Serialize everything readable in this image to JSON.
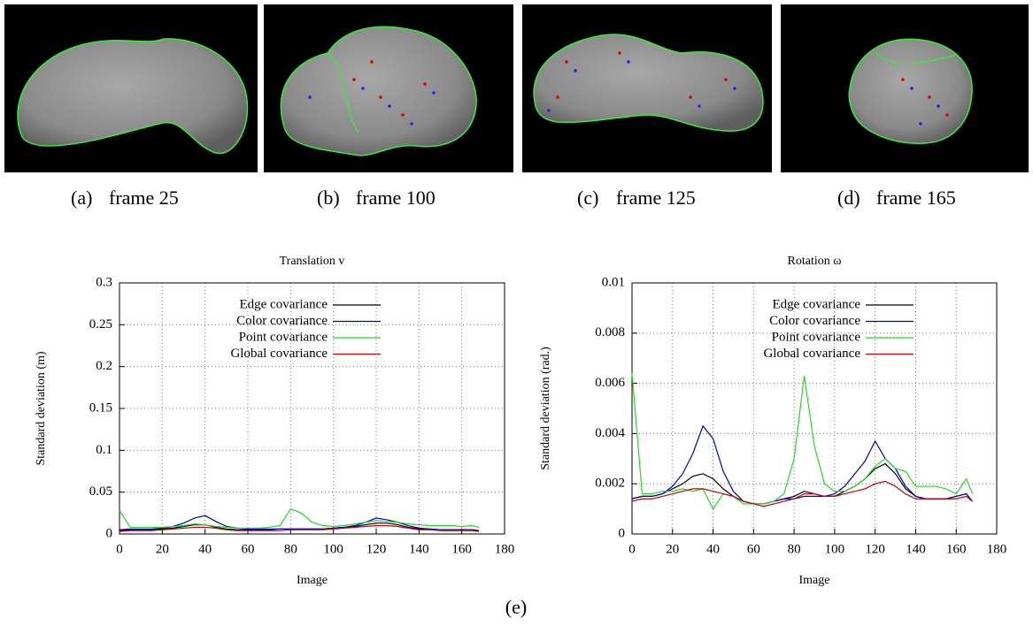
{
  "panels": [
    {
      "label": "(a)",
      "caption": "frame 25"
    },
    {
      "label": "(b)",
      "caption": "frame 100"
    },
    {
      "label": "(c)",
      "caption": "frame 125"
    },
    {
      "label": "(d)",
      "caption": "frame 165"
    }
  ],
  "figure_label": "(e)",
  "chart_data": [
    {
      "type": "line",
      "title": "Translation v",
      "xlabel": "Image",
      "ylabel": "Standard deviation (m)",
      "xlim": [
        0,
        180
      ],
      "xticks": [
        0,
        20,
        40,
        60,
        80,
        100,
        120,
        140,
        160,
        180
      ],
      "ylim": [
        0,
        0.3
      ],
      "yticks": [
        0,
        0.05,
        0.1,
        0.15,
        0.2,
        0.25,
        0.3
      ],
      "grid": true,
      "legend": "top",
      "x": [
        0,
        5,
        10,
        15,
        20,
        25,
        30,
        35,
        40,
        45,
        50,
        55,
        60,
        65,
        70,
        75,
        80,
        85,
        90,
        95,
        100,
        105,
        110,
        115,
        120,
        125,
        130,
        135,
        140,
        145,
        150,
        155,
        160,
        165,
        168
      ],
      "series": [
        {
          "name": "Edge covariance",
          "color": "#000000",
          "values": [
            0.004,
            0.005,
            0.005,
            0.005,
            0.006,
            0.007,
            0.009,
            0.011,
            0.011,
            0.008,
            0.006,
            0.005,
            0.005,
            0.005,
            0.005,
            0.006,
            0.006,
            0.006,
            0.006,
            0.006,
            0.007,
            0.008,
            0.009,
            0.011,
            0.013,
            0.013,
            0.011,
            0.008,
            0.006,
            0.006,
            0.005,
            0.005,
            0.005,
            0.005,
            0.004
          ]
        },
        {
          "name": "Color covariance",
          "color": "#0000cc",
          "values": [
            0.005,
            0.006,
            0.006,
            0.006,
            0.007,
            0.009,
            0.013,
            0.019,
            0.022,
            0.015,
            0.009,
            0.007,
            0.006,
            0.006,
            0.006,
            0.006,
            0.006,
            0.006,
            0.006,
            0.006,
            0.007,
            0.008,
            0.01,
            0.014,
            0.019,
            0.017,
            0.014,
            0.01,
            0.007,
            0.006,
            0.005,
            0.005,
            0.005,
            0.005,
            0.004
          ]
        },
        {
          "name": "Point covariance",
          "color": "#22dd22",
          "values": [
            0.028,
            0.008,
            0.008,
            0.008,
            0.008,
            0.009,
            0.01,
            0.012,
            0.011,
            0.009,
            0.008,
            0.007,
            0.007,
            0.007,
            0.008,
            0.01,
            0.03,
            0.025,
            0.014,
            0.01,
            0.009,
            0.01,
            0.012,
            0.014,
            0.016,
            0.015,
            0.014,
            0.012,
            0.011,
            0.01,
            0.01,
            0.01,
            0.009,
            0.01,
            0.008
          ]
        },
        {
          "name": "Global covariance",
          "color": "#cc0000",
          "values": [
            0.003,
            0.004,
            0.004,
            0.004,
            0.005,
            0.006,
            0.007,
            0.008,
            0.008,
            0.007,
            0.005,
            0.004,
            0.004,
            0.004,
            0.004,
            0.004,
            0.005,
            0.005,
            0.005,
            0.005,
            0.006,
            0.007,
            0.008,
            0.009,
            0.01,
            0.01,
            0.009,
            0.007,
            0.005,
            0.005,
            0.004,
            0.004,
            0.004,
            0.004,
            0.003
          ]
        }
      ]
    },
    {
      "type": "line",
      "title": "Rotation ω",
      "xlabel": "Image",
      "ylabel": "Standard deviation (rad.)",
      "xlim": [
        0,
        180
      ],
      "xticks": [
        0,
        20,
        40,
        60,
        80,
        100,
        120,
        140,
        160,
        180
      ],
      "ylim": [
        0,
        0.01
      ],
      "yticks": [
        0,
        0.002,
        0.004,
        0.006,
        0.008,
        0.01
      ],
      "grid": true,
      "legend": "top",
      "x": [
        0,
        5,
        10,
        15,
        20,
        25,
        30,
        35,
        40,
        45,
        50,
        55,
        60,
        65,
        70,
        75,
        80,
        85,
        90,
        95,
        100,
        105,
        110,
        115,
        120,
        125,
        130,
        135,
        140,
        145,
        150,
        155,
        160,
        165,
        168
      ],
      "series": [
        {
          "name": "Edge covariance",
          "color": "#000000",
          "values": [
            0.0014,
            0.0015,
            0.0015,
            0.0016,
            0.0018,
            0.002,
            0.0023,
            0.0024,
            0.0022,
            0.0018,
            0.0015,
            0.0013,
            0.0012,
            0.0012,
            0.0013,
            0.0014,
            0.0015,
            0.0017,
            0.0016,
            0.0015,
            0.0015,
            0.0017,
            0.0019,
            0.0022,
            0.0026,
            0.0028,
            0.0024,
            0.0018,
            0.0015,
            0.0014,
            0.0014,
            0.0014,
            0.0015,
            0.0016,
            0.0013
          ]
        },
        {
          "name": "Color covariance",
          "color": "#0000cc",
          "values": [
            0.0014,
            0.0015,
            0.0015,
            0.0016,
            0.0019,
            0.0024,
            0.0032,
            0.0043,
            0.0038,
            0.0025,
            0.0017,
            0.0013,
            0.0012,
            0.0012,
            0.0013,
            0.0014,
            0.0014,
            0.0015,
            0.0015,
            0.0015,
            0.0016,
            0.0019,
            0.0024,
            0.0029,
            0.0037,
            0.003,
            0.0026,
            0.0019,
            0.0015,
            0.0014,
            0.0014,
            0.0014,
            0.0015,
            0.0016,
            0.0013
          ]
        },
        {
          "name": "Point covariance",
          "color": "#22dd22",
          "values": [
            0.0064,
            0.0016,
            0.0016,
            0.0017,
            0.0017,
            0.0018,
            0.0017,
            0.0018,
            0.001,
            0.0016,
            0.0015,
            0.0012,
            0.0012,
            0.0012,
            0.0013,
            0.0016,
            0.003,
            0.0063,
            0.0035,
            0.002,
            0.0017,
            0.0017,
            0.0019,
            0.0022,
            0.0027,
            0.003,
            0.0026,
            0.0025,
            0.0019,
            0.0019,
            0.0019,
            0.0018,
            0.0016,
            0.0022,
            0.0016
          ]
        },
        {
          "name": "Global covariance",
          "color": "#cc0000",
          "values": [
            0.0013,
            0.0014,
            0.0014,
            0.0015,
            0.0016,
            0.0017,
            0.0018,
            0.0018,
            0.0017,
            0.0016,
            0.0015,
            0.0013,
            0.0012,
            0.0011,
            0.0012,
            0.0013,
            0.0014,
            0.0016,
            0.0016,
            0.0015,
            0.0015,
            0.0016,
            0.0017,
            0.0018,
            0.002,
            0.0021,
            0.0019,
            0.0016,
            0.0014,
            0.0014,
            0.0014,
            0.0014,
            0.0014,
            0.0015,
            0.0013
          ]
        }
      ]
    }
  ]
}
